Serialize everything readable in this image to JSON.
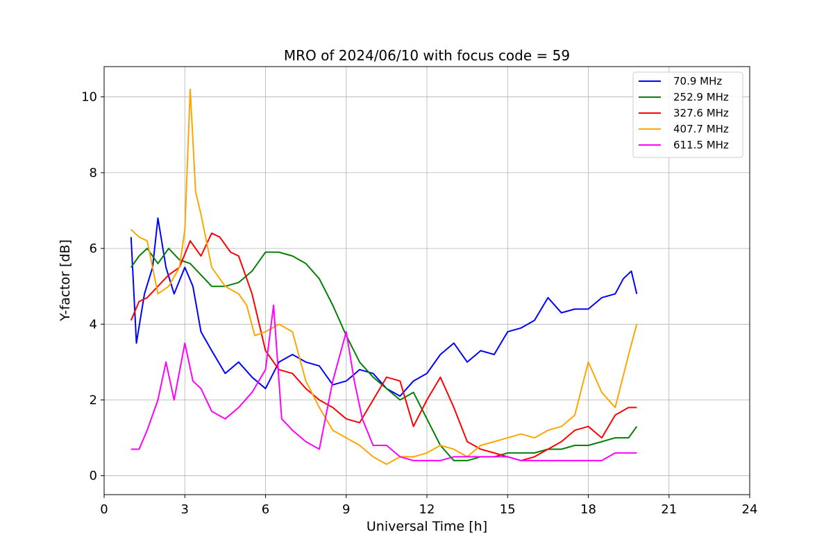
{
  "chart_data": {
    "type": "line",
    "title": "MRO of 2024/06/10 with focus code = 59",
    "xlabel": "Universal Time [h]",
    "ylabel": "Y-factor [dB]",
    "xlim": [
      0,
      24
    ],
    "ylim": [
      -0.5,
      10.8
    ],
    "xticks": [
      0,
      3,
      6,
      9,
      12,
      15,
      18,
      21,
      24
    ],
    "yticks": [
      0,
      2,
      4,
      6,
      8,
      10
    ],
    "grid": true,
    "legend_position": "top-right",
    "series": [
      {
        "name": "70.9 MHz",
        "color": "#0000ff",
        "x": [
          1.0,
          1.2,
          1.5,
          1.8,
          2.0,
          2.3,
          2.6,
          3.0,
          3.3,
          3.6,
          4.0,
          4.5,
          5.0,
          5.5,
          6.0,
          6.5,
          7.0,
          7.5,
          8.0,
          8.5,
          9.0,
          9.5,
          10.0,
          10.5,
          11.0,
          11.5,
          12.0,
          12.5,
          13.0,
          13.5,
          14.0,
          14.5,
          15.0,
          15.5,
          16.0,
          16.5,
          17.0,
          17.5,
          18.0,
          18.5,
          19.0,
          19.3,
          19.6,
          19.8
        ],
        "y": [
          6.3,
          3.5,
          4.8,
          5.5,
          6.8,
          5.5,
          4.8,
          5.5,
          5.0,
          3.8,
          3.3,
          2.7,
          3.0,
          2.6,
          2.3,
          3.0,
          3.2,
          3.0,
          2.9,
          2.4,
          2.5,
          2.8,
          2.7,
          2.3,
          2.1,
          2.5,
          2.7,
          3.2,
          3.5,
          3.0,
          3.3,
          3.2,
          3.8,
          3.9,
          4.1,
          4.7,
          4.3,
          4.4,
          4.4,
          4.7,
          4.8,
          5.2,
          5.4,
          4.8
        ]
      },
      {
        "name": "252.9 MHz",
        "color": "#008000",
        "x": [
          1.0,
          1.3,
          1.6,
          2.0,
          2.4,
          2.8,
          3.2,
          3.6,
          4.0,
          4.5,
          5.0,
          5.5,
          6.0,
          6.5,
          7.0,
          7.5,
          8.0,
          8.5,
          9.0,
          9.5,
          10.0,
          10.5,
          11.0,
          11.5,
          12.0,
          12.5,
          13.0,
          13.5,
          14.0,
          14.5,
          15.0,
          15.5,
          16.0,
          16.5,
          17.0,
          17.5,
          18.0,
          18.5,
          19.0,
          19.5,
          19.8
        ],
        "y": [
          5.5,
          5.8,
          6.0,
          5.6,
          6.0,
          5.7,
          5.6,
          5.3,
          5.0,
          5.0,
          5.1,
          5.4,
          5.9,
          5.9,
          5.8,
          5.6,
          5.2,
          4.5,
          3.7,
          3.0,
          2.6,
          2.3,
          2.0,
          2.2,
          1.5,
          0.8,
          0.4,
          0.4,
          0.5,
          0.5,
          0.6,
          0.6,
          0.6,
          0.7,
          0.7,
          0.8,
          0.8,
          0.9,
          1.0,
          1.0,
          1.3
        ]
      },
      {
        "name": "327.6 MHz",
        "color": "#ff0000",
        "x": [
          1.0,
          1.3,
          1.6,
          2.0,
          2.4,
          2.8,
          3.2,
          3.6,
          4.0,
          4.3,
          4.7,
          5.0,
          5.5,
          6.0,
          6.5,
          7.0,
          7.5,
          8.0,
          8.5,
          9.0,
          9.5,
          10.0,
          10.5,
          11.0,
          11.5,
          12.0,
          12.5,
          13.0,
          13.5,
          14.0,
          14.5,
          15.0,
          15.5,
          16.0,
          16.5,
          17.0,
          17.5,
          18.0,
          18.5,
          19.0,
          19.5,
          19.8
        ],
        "y": [
          4.1,
          4.6,
          4.7,
          5.0,
          5.3,
          5.5,
          6.2,
          5.8,
          6.4,
          6.3,
          5.9,
          5.8,
          4.8,
          3.3,
          2.8,
          2.7,
          2.3,
          2.0,
          1.8,
          1.5,
          1.4,
          2.0,
          2.6,
          2.5,
          1.3,
          2.0,
          2.6,
          1.8,
          0.9,
          0.7,
          0.6,
          0.5,
          0.4,
          0.5,
          0.7,
          0.9,
          1.2,
          1.3,
          1.0,
          1.6,
          1.8,
          1.8
        ]
      },
      {
        "name": "407.7 MHz",
        "color": "#ffa500",
        "x": [
          1.0,
          1.3,
          1.6,
          2.0,
          2.4,
          2.8,
          3.0,
          3.2,
          3.4,
          3.6,
          4.0,
          4.5,
          5.0,
          5.3,
          5.6,
          6.0,
          6.5,
          7.0,
          7.5,
          8.0,
          8.5,
          9.0,
          9.5,
          10.0,
          10.5,
          11.0,
          11.5,
          12.0,
          12.5,
          13.0,
          13.5,
          14.0,
          14.5,
          15.0,
          15.5,
          16.0,
          16.5,
          17.0,
          17.5,
          18.0,
          18.5,
          19.0,
          19.5,
          19.8
        ],
        "y": [
          6.5,
          6.3,
          6.2,
          4.8,
          5.0,
          5.5,
          6.5,
          10.2,
          7.5,
          6.9,
          5.5,
          5.0,
          4.8,
          4.5,
          3.7,
          3.8,
          4.0,
          3.8,
          2.5,
          1.8,
          1.2,
          1.0,
          0.8,
          0.5,
          0.3,
          0.5,
          0.5,
          0.6,
          0.8,
          0.7,
          0.5,
          0.8,
          0.9,
          1.0,
          1.1,
          1.0,
          1.2,
          1.3,
          1.6,
          3.0,
          2.2,
          1.8,
          3.2,
          4.0
        ]
      },
      {
        "name": "611.5 MHz",
        "color": "#ff00ff",
        "x": [
          1.0,
          1.3,
          1.6,
          2.0,
          2.3,
          2.6,
          3.0,
          3.3,
          3.6,
          4.0,
          4.5,
          5.0,
          5.5,
          6.0,
          6.3,
          6.6,
          7.0,
          7.5,
          8.0,
          8.5,
          9.0,
          9.3,
          9.6,
          10.0,
          10.5,
          11.0,
          11.5,
          12.0,
          12.5,
          13.0,
          13.5,
          14.0,
          14.5,
          15.0,
          15.5,
          16.0,
          16.5,
          17.0,
          17.5,
          18.0,
          18.5,
          19.0,
          19.5,
          19.8
        ],
        "y": [
          0.7,
          0.7,
          1.2,
          2.0,
          3.0,
          2.0,
          3.5,
          2.5,
          2.3,
          1.7,
          1.5,
          1.8,
          2.2,
          2.8,
          4.5,
          1.5,
          1.2,
          0.9,
          0.7,
          2.5,
          3.8,
          2.5,
          1.5,
          0.8,
          0.8,
          0.5,
          0.4,
          0.4,
          0.4,
          0.5,
          0.5,
          0.5,
          0.5,
          0.5,
          0.4,
          0.4,
          0.4,
          0.4,
          0.4,
          0.4,
          0.4,
          0.6,
          0.6,
          0.6
        ]
      }
    ]
  }
}
